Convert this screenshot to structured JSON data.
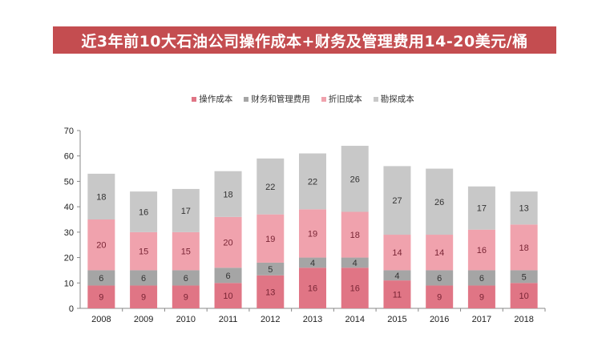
{
  "chart_data": {
    "type": "bar",
    "stacked": true,
    "title": "近3年前10大石油公司操作成本+财务及管理费用14-20美元/桶",
    "xlabel": "",
    "ylabel": "",
    "ylim": [
      0,
      70
    ],
    "yticks": [
      0,
      10,
      20,
      30,
      40,
      50,
      60,
      70
    ],
    "legend_position": "top-center",
    "grid": false,
    "categories": [
      "2008",
      "2009",
      "2010",
      "2011",
      "2012",
      "2013",
      "2014",
      "2015",
      "2016",
      "2017",
      "2018"
    ],
    "series": [
      {
        "name": "操作成本",
        "color": "#e07585",
        "label_color": "#7a2535",
        "values": [
          9,
          9,
          9,
          10,
          13,
          16,
          16,
          11,
          9,
          9,
          10
        ]
      },
      {
        "name": "财务和管理费用",
        "color": "#a5a5a5",
        "label_color": "#333333",
        "values": [
          6,
          6,
          6,
          6,
          5,
          4,
          4,
          4,
          6,
          6,
          5
        ]
      },
      {
        "name": "折旧成本",
        "color": "#f0a2ad",
        "label_color": "#7a2535",
        "values": [
          20,
          15,
          15,
          20,
          19,
          19,
          18,
          14,
          14,
          16,
          18
        ]
      },
      {
        "name": "勘探成本",
        "color": "#c8c8c8",
        "label_color": "#333333",
        "values": [
          18,
          16,
          17,
          18,
          22,
          22,
          26,
          27,
          26,
          17,
          13
        ]
      }
    ]
  }
}
